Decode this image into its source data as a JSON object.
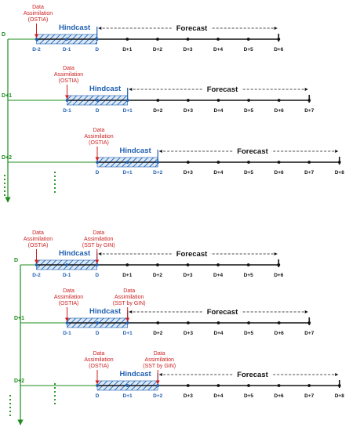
{
  "labels": {
    "hindcast": "Hindcast",
    "forecast": "Forecast",
    "da_top": "Data",
    "da_mid": "Assimilation",
    "ostia": "(OSTIA)",
    "gin": "(SST by GIN)"
  },
  "colors": {
    "hindcast_blue": "#1f5fb0",
    "hatch_blue": "#2a6fb8",
    "data_assimilation_red": "#cc1f1f",
    "row_marker_green": "#1e8c1e",
    "axis_black": "#111111"
  },
  "panels": [
    {
      "rows": [
        {
          "label": "D",
          "ticks": [
            "D-2",
            "D-1",
            "D",
            "D+1",
            "D+2",
            "D+3",
            "D+4",
            "D+5",
            "D+6"
          ],
          "blue_ticks": 3,
          "assimilations": [
            {
              "source": "(OSTIA)",
              "at": 0
            }
          ]
        },
        {
          "label": "D+1",
          "ticks": [
            "D-1",
            "D",
            "D+1",
            "D+2",
            "D+3",
            "D+4",
            "D+5",
            "D+6",
            "D+7"
          ],
          "blue_ticks": 3,
          "assimilations": [
            {
              "source": "(OSTIA)",
              "at": 0
            }
          ]
        },
        {
          "label": "D+2",
          "ticks": [
            "D",
            "D+1",
            "D+2",
            "D+3",
            "D+4",
            "D+5",
            "D+6",
            "D+7",
            "D+8"
          ],
          "blue_ticks": 3,
          "assimilations": [
            {
              "source": "(OSTIA)",
              "at": 0
            }
          ]
        }
      ]
    },
    {
      "rows": [
        {
          "label": "D",
          "ticks": [
            "D-2",
            "D-1",
            "D",
            "D+1",
            "D+2",
            "D+3",
            "D+4",
            "D+5",
            "D+6"
          ],
          "blue_ticks": 3,
          "assimilations": [
            {
              "source": "(OSTIA)",
              "at": 0
            },
            {
              "source": "(SST by GIN)",
              "at": 2
            }
          ]
        },
        {
          "label": "D+1",
          "ticks": [
            "D-1",
            "D",
            "D+1",
            "D+2",
            "D+3",
            "D+4",
            "D+5",
            "D+6",
            "D+7"
          ],
          "blue_ticks": 3,
          "assimilations": [
            {
              "source": "(OSTIA)",
              "at": 0
            },
            {
              "source": "(SST by GIN)",
              "at": 2
            }
          ]
        },
        {
          "label": "D+2",
          "ticks": [
            "D",
            "D+1",
            "D+2",
            "D+3",
            "D+4",
            "D+5",
            "D+6",
            "D+7",
            "D+8"
          ],
          "blue_ticks": 3,
          "assimilations": [
            {
              "source": "(OSTIA)",
              "at": 0
            },
            {
              "source": "(SST by GIN)",
              "at": 2
            }
          ]
        }
      ]
    }
  ]
}
